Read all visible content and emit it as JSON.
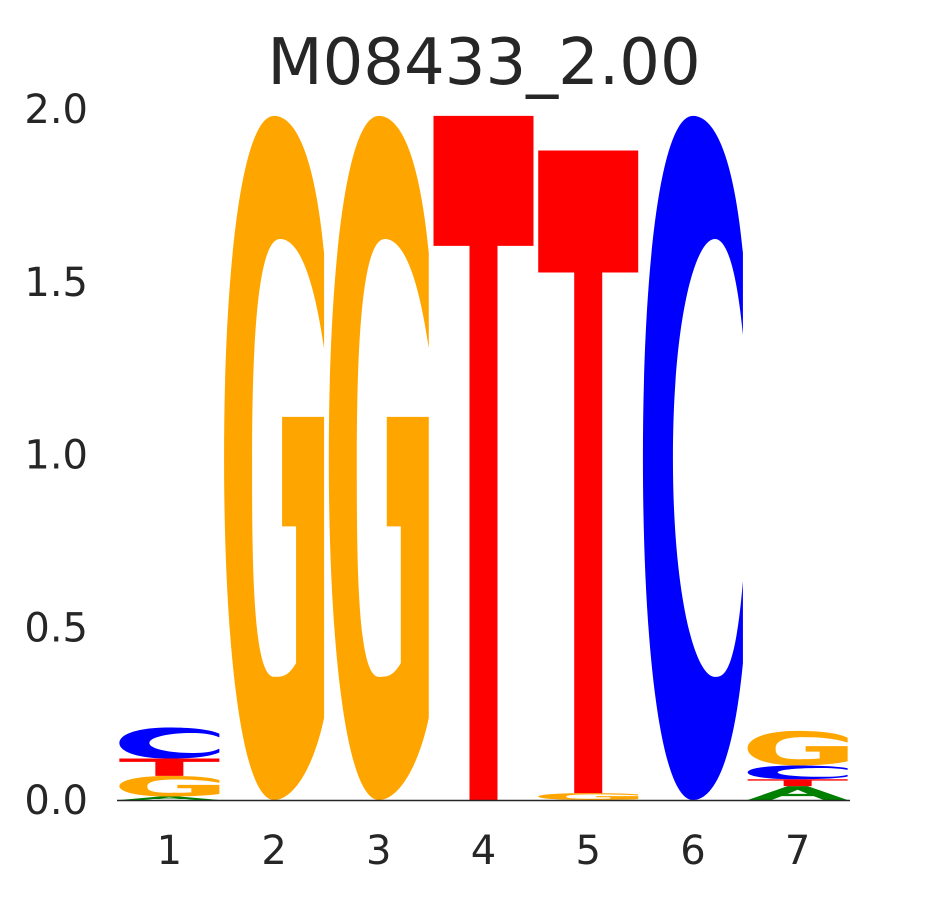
{
  "chart_data": {
    "type": "sequence-logo",
    "title": "M08433_2.00",
    "xlabel": "",
    "ylabel": "",
    "ylim": [
      0,
      2.0
    ],
    "yticks": [
      "0.0",
      "0.5",
      "1.0",
      "1.5",
      "2.0"
    ],
    "x": [
      "1",
      "2",
      "3",
      "4",
      "5",
      "6",
      "7"
    ],
    "colors": {
      "A": "#008000",
      "C": "#0000ff",
      "G": "#ffa500",
      "T": "#ff0000"
    },
    "grid": false,
    "legend": "none",
    "positions": [
      {
        "position": "1",
        "letters": [
          {
            "base": "A",
            "height": 0.01
          },
          {
            "base": "G",
            "height": 0.06
          },
          {
            "base": "T",
            "height": 0.05
          },
          {
            "base": "C",
            "height": 0.09
          }
        ]
      },
      {
        "position": "2",
        "letters": [
          {
            "base": "G",
            "height": 1.98
          }
        ]
      },
      {
        "position": "3",
        "letters": [
          {
            "base": "G",
            "height": 1.98
          }
        ]
      },
      {
        "position": "4",
        "letters": [
          {
            "base": "T",
            "height": 1.98
          }
        ]
      },
      {
        "position": "5",
        "letters": [
          {
            "base": "G",
            "height": 0.02
          },
          {
            "base": "T",
            "height": 1.86
          }
        ]
      },
      {
        "position": "6",
        "letters": [
          {
            "base": "C",
            "height": 1.98
          }
        ]
      },
      {
        "position": "7",
        "letters": [
          {
            "base": "A",
            "height": 0.04
          },
          {
            "base": "T",
            "height": 0.02
          },
          {
            "base": "C",
            "height": 0.04
          },
          {
            "base": "G",
            "height": 0.1
          }
        ]
      }
    ]
  }
}
